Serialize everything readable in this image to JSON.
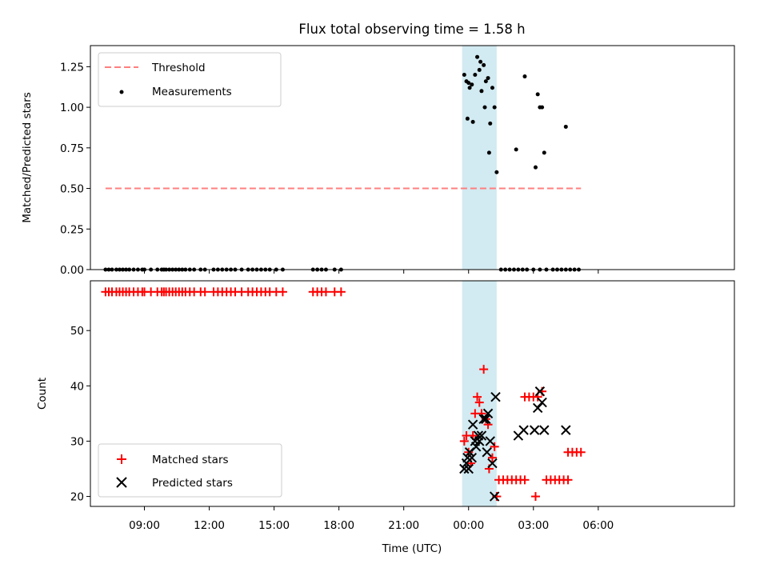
{
  "chart_data": {
    "title": "Flux total observing time = 1.58 h",
    "x_axis": {
      "label": "Time (UTC)",
      "type": "time",
      "range_hours": [
        0.5,
        30.3
      ],
      "ticks": [
        {
          "value": 3,
          "label": "09:00"
        },
        {
          "value": 6,
          "label": "12:00"
        },
        {
          "value": 9,
          "label": "15:00"
        },
        {
          "value": 12,
          "label": "18:00"
        },
        {
          "value": 15,
          "label": "21:00"
        },
        {
          "value": 18,
          "label": "00:00"
        },
        {
          "value": 21,
          "label": "03:00"
        },
        {
          "value": 24,
          "label": "06:00"
        }
      ]
    },
    "observing_span": {
      "start_hours": 17.7,
      "end_hours": 19.3,
      "color": "#add8e6"
    },
    "panels": [
      {
        "type": "scatter",
        "ylabel": "Matched/Predicted stars",
        "ylim": [
          0,
          1.38
        ],
        "yticks": [
          {
            "value": 0.0,
            "label": "0.00"
          },
          {
            "value": 0.25,
            "label": "0.25"
          },
          {
            "value": 0.5,
            "label": "0.50"
          },
          {
            "value": 0.75,
            "label": "0.75"
          },
          {
            "value": 1.0,
            "label": "1.00"
          },
          {
            "value": 1.25,
            "label": "1.25"
          }
        ],
        "legend": {
          "position": "upper-left",
          "entries": [
            {
              "label": "Threshold",
              "style": "dashed-line",
              "color": "#ff7f7f"
            },
            {
              "label": "Measurements",
              "style": "dot",
              "color": "#000000"
            }
          ]
        },
        "threshold": {
          "value": 0.5,
          "x_start": 1.2,
          "x_end": 23.2
        },
        "zero_x": [
          1.2,
          1.35,
          1.5,
          1.7,
          1.85,
          2.0,
          2.15,
          2.3,
          2.5,
          2.7,
          2.9,
          3.0,
          3.3,
          3.6,
          3.8,
          3.9,
          4.0,
          4.15,
          4.3,
          4.45,
          4.6,
          4.75,
          4.9,
          5.1,
          5.3,
          5.6,
          5.8,
          6.2,
          6.4,
          6.6,
          6.8,
          7.0,
          7.2,
          7.5,
          7.8,
          8.0,
          8.2,
          8.4,
          8.6,
          8.8,
          9.1,
          9.4,
          10.8,
          11.0,
          11.2,
          11.4,
          11.8,
          12.1,
          19.5,
          19.7,
          19.9,
          20.1,
          20.3,
          20.5,
          20.7,
          21.0,
          21.3,
          21.6,
          21.9,
          22.1,
          22.3,
          22.5,
          22.7,
          22.9,
          23.1
        ],
        "measurements": [
          {
            "x": 17.8,
            "y": 1.2
          },
          {
            "x": 17.9,
            "y": 1.16
          },
          {
            "x": 18.0,
            "y": 1.15
          },
          {
            "x": 18.05,
            "y": 1.12
          },
          {
            "x": 18.15,
            "y": 1.14
          },
          {
            "x": 18.3,
            "y": 1.2
          },
          {
            "x": 18.4,
            "y": 1.31
          },
          {
            "x": 18.5,
            "y": 1.23
          },
          {
            "x": 18.55,
            "y": 1.28
          },
          {
            "x": 18.6,
            "y": 1.1
          },
          {
            "x": 18.7,
            "y": 1.26
          },
          {
            "x": 18.8,
            "y": 1.16
          },
          {
            "x": 18.9,
            "y": 1.18
          },
          {
            "x": 19.1,
            "y": 1.12
          },
          {
            "x": 17.95,
            "y": 0.93
          },
          {
            "x": 18.2,
            "y": 0.91
          },
          {
            "x": 18.75,
            "y": 1.0
          },
          {
            "x": 19.0,
            "y": 0.9
          },
          {
            "x": 19.2,
            "y": 1.0
          },
          {
            "x": 18.95,
            "y": 0.72
          },
          {
            "x": 19.3,
            "y": 0.6
          },
          {
            "x": 20.2,
            "y": 0.74
          },
          {
            "x": 20.6,
            "y": 1.19
          },
          {
            "x": 21.1,
            "y": 0.63
          },
          {
            "x": 21.2,
            "y": 1.08
          },
          {
            "x": 21.3,
            "y": 1.0
          },
          {
            "x": 21.4,
            "y": 1.0
          },
          {
            "x": 21.5,
            "y": 0.72
          },
          {
            "x": 22.5,
            "y": 0.88
          }
        ]
      },
      {
        "type": "scatter",
        "ylabel": "Count",
        "ylim": [
          18.2,
          59
        ],
        "yticks": [
          {
            "value": 20,
            "label": "20"
          },
          {
            "value": 30,
            "label": "30"
          },
          {
            "value": 40,
            "label": "40"
          },
          {
            "value": 50,
            "label": "50"
          }
        ],
        "legend": {
          "position": "lower-left",
          "entries": [
            {
              "label": "Matched stars",
              "style": "plus",
              "color": "#ff0000"
            },
            {
              "label": "Predicted stars",
              "style": "x",
              "color": "#000000"
            }
          ]
        },
        "matched_stars": {
          "top_row": {
            "y": 57,
            "x": [
              1.2,
              1.35,
              1.5,
              1.7,
              1.85,
              2.0,
              2.15,
              2.3,
              2.5,
              2.7,
              2.9,
              3.0,
              3.3,
              3.6,
              3.8,
              3.9,
              4.0,
              4.15,
              4.3,
              4.45,
              4.6,
              4.75,
              4.9,
              5.1,
              5.3,
              5.6,
              5.8,
              6.2,
              6.4,
              6.6,
              6.8,
              7.0,
              7.2,
              7.5,
              7.8,
              8.0,
              8.2,
              8.4,
              8.6,
              8.8,
              9.1,
              9.4,
              10.8,
              11.0,
              11.2,
              11.4,
              11.8,
              12.1
            ]
          },
          "lower_row": {
            "y": 23,
            "x": [
              19.4,
              19.6,
              19.8,
              20.0,
              20.2,
              20.4,
              20.6
            ]
          },
          "lower_row_2": {
            "y": 23,
            "x": [
              21.6,
              21.8,
              22.0,
              22.2,
              22.4,
              22.6
            ]
          },
          "row_28": {
            "y": 28,
            "x": [
              22.6,
              22.8,
              23.0,
              23.2
            ]
          },
          "row_38": {
            "y": 38,
            "x": [
              20.6,
              20.8,
              21.0,
              21.2
            ]
          },
          "points": [
            {
              "x": 17.8,
              "y": 30
            },
            {
              "x": 17.9,
              "y": 31
            },
            {
              "x": 18.0,
              "y": 28
            },
            {
              "x": 18.1,
              "y": 26
            },
            {
              "x": 18.2,
              "y": 31
            },
            {
              "x": 18.3,
              "y": 35
            },
            {
              "x": 18.4,
              "y": 38
            },
            {
              "x": 18.5,
              "y": 37
            },
            {
              "x": 18.6,
              "y": 35
            },
            {
              "x": 18.7,
              "y": 43
            },
            {
              "x": 18.8,
              "y": 34
            },
            {
              "x": 18.9,
              "y": 33
            },
            {
              "x": 18.95,
              "y": 25
            },
            {
              "x": 19.1,
              "y": 27
            },
            {
              "x": 19.2,
              "y": 29
            },
            {
              "x": 19.3,
              "y": 20
            },
            {
              "x": 21.1,
              "y": 20
            },
            {
              "x": 21.4,
              "y": 39
            }
          ]
        },
        "predicted_stars": [
          {
            "x": 17.8,
            "y": 25
          },
          {
            "x": 17.9,
            "y": 26
          },
          {
            "x": 17.95,
            "y": 27
          },
          {
            "x": 18.0,
            "y": 25
          },
          {
            "x": 18.05,
            "y": 28
          },
          {
            "x": 18.15,
            "y": 27
          },
          {
            "x": 18.2,
            "y": 33
          },
          {
            "x": 18.3,
            "y": 30
          },
          {
            "x": 18.35,
            "y": 29
          },
          {
            "x": 18.45,
            "y": 31
          },
          {
            "x": 18.5,
            "y": 30
          },
          {
            "x": 18.6,
            "y": 31
          },
          {
            "x": 18.7,
            "y": 34
          },
          {
            "x": 18.8,
            "y": 34
          },
          {
            "x": 18.85,
            "y": 28
          },
          {
            "x": 18.9,
            "y": 35
          },
          {
            "x": 19.0,
            "y": 30
          },
          {
            "x": 19.1,
            "y": 26
          },
          {
            "x": 19.25,
            "y": 38
          },
          {
            "x": 19.2,
            "y": 20
          },
          {
            "x": 20.3,
            "y": 31
          },
          {
            "x": 20.55,
            "y": 32
          },
          {
            "x": 21.05,
            "y": 32
          },
          {
            "x": 21.2,
            "y": 36
          },
          {
            "x": 21.3,
            "y": 39
          },
          {
            "x": 21.4,
            "y": 37
          },
          {
            "x": 21.5,
            "y": 32
          },
          {
            "x": 22.5,
            "y": 32
          }
        ]
      }
    ]
  }
}
